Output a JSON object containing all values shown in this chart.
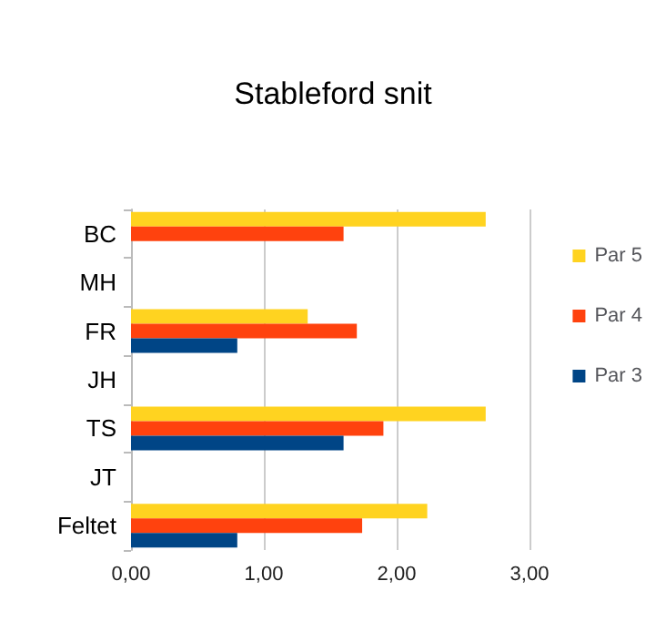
{
  "chart_data": {
    "type": "bar",
    "title": "Stableford snit",
    "orientation": "horizontal",
    "categories": [
      "BC",
      "MH",
      "FR",
      "JH",
      "TS",
      "JT",
      "Feltet"
    ],
    "series": [
      {
        "name": "Par 5",
        "color": "#ffd320",
        "values": [
          2.67,
          null,
          1.33,
          null,
          2.67,
          null,
          2.23
        ]
      },
      {
        "name": "Par 4",
        "color": "#ff420e",
        "values": [
          1.6,
          null,
          1.7,
          null,
          1.9,
          null,
          1.74
        ]
      },
      {
        "name": "Par 3",
        "color": "#004586",
        "values": [
          null,
          null,
          0.8,
          null,
          1.6,
          null,
          0.8
        ]
      }
    ],
    "xlim": [
      0,
      3
    ],
    "xticks": [
      {
        "value": 0,
        "label": "0,00"
      },
      {
        "value": 1,
        "label": "1,00"
      },
      {
        "value": 2,
        "label": "2,00"
      },
      {
        "value": 3,
        "label": "3,00"
      }
    ],
    "grid": "x",
    "legend": "right"
  }
}
